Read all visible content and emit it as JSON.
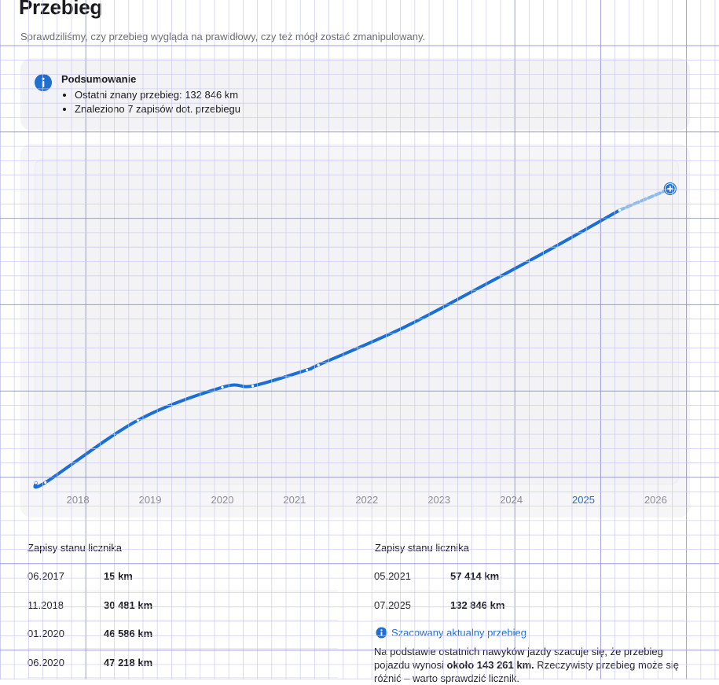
{
  "page": {
    "title": "Przebieg",
    "subtitle": "Sprawdziliśmy, czy przebieg wygląda na prawidłowy, czy też mógł zostać zmanipulowany."
  },
  "summary": {
    "title": "Podsumowanie",
    "items": [
      "Ostatni znany przebieg: 132 846 km",
      "Znaleziono 7 zapisów dot. przebiegu"
    ]
  },
  "chart_data": {
    "type": "line",
    "x_unit": "year",
    "y_unit": "km",
    "ticks": [
      "2018",
      "2019",
      "2020",
      "2021",
      "2022",
      "2023",
      "2024",
      "2025",
      "2026"
    ],
    "current_year_tick": "2025",
    "xlim": [
      2017.4,
      2026.3
    ],
    "ylim": [
      0,
      143261
    ],
    "series": [
      {
        "name": "Zapisy stanu licznika",
        "points": [
          {
            "x": 2017.42,
            "y": 15
          },
          {
            "x": 2017.55,
            "y": 200
          },
          {
            "x": 2018.83,
            "y": 30481
          },
          {
            "x": 2020.0,
            "y": 46586
          },
          {
            "x": 2020.42,
            "y": 47218
          },
          {
            "x": 2021.17,
            "y": 55000
          },
          {
            "x": 2021.33,
            "y": 57414
          },
          {
            "x": 2022.5,
            "y": 75500
          },
          {
            "x": 2023.5,
            "y": 94000
          },
          {
            "x": 2024.5,
            "y": 113000
          },
          {
            "x": 2025.5,
            "y": 132846
          }
        ]
      },
      {
        "name": "Szacowany aktualny przebieg",
        "points": [
          {
            "x": 2025.5,
            "y": 132846
          },
          {
            "x": 2026.2,
            "y": 143261
          }
        ]
      }
    ]
  },
  "colors": {
    "accent": "#1f6fcf",
    "line": "#1a6fd6",
    "estimate": "#8dbbeb"
  },
  "records": {
    "left_title": "Zapisy stanu licznika",
    "right_title": "Zapisy stanu licznika",
    "left": [
      {
        "date": "06.2017",
        "km": "15 km"
      },
      {
        "date": "11.2018",
        "km": "30 481 km"
      },
      {
        "date": "01.2020",
        "km": "46 586 km"
      },
      {
        "date": "06.2020",
        "km": "47 218 km"
      }
    ],
    "right": [
      {
        "date": "05.2021",
        "km": "57 414 km"
      },
      {
        "date": "07.2025",
        "km": "132 846 km"
      }
    ]
  },
  "estimate": {
    "title": "Szacowany aktualny przebieg",
    "text_before": "Na podstawie ostatnich nawyków jazdy szacuje się, że przebieg pojazdu wynosi ",
    "text_bold": "około 143 261 km.",
    "text_after": " Rzeczywisty przebieg może się różnić – warto sprawdzić licznik."
  }
}
